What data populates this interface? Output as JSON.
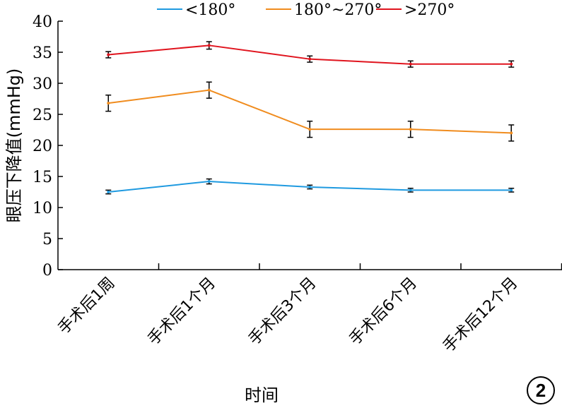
{
  "chart_data": {
    "type": "line",
    "title": "",
    "xlabel": "时间",
    "ylabel": "眼压下降值(mmHg)",
    "categories": [
      "手术后1周",
      "手术后1个月",
      "手术后3个月",
      "手术后6个月",
      "手术后12个月"
    ],
    "ylim": [
      0,
      40
    ],
    "yticks": [
      0,
      5,
      10,
      15,
      20,
      25,
      30,
      35,
      40
    ],
    "grid": false,
    "legend_position": "top",
    "series": [
      {
        "name": "<180°",
        "color": "#1f9ae0",
        "values": [
          12.5,
          14.2,
          13.3,
          12.8,
          12.8
        ],
        "errors": [
          0.3,
          0.4,
          0.3,
          0.3,
          0.3
        ]
      },
      {
        "name": "180°~270°",
        "color": "#f08c1e",
        "values": [
          26.8,
          28.9,
          22.6,
          22.6,
          22.0
        ],
        "errors": [
          1.3,
          1.3,
          1.3,
          1.3,
          1.3
        ]
      },
      {
        "name": ">270°",
        "color": "#e0141e",
        "values": [
          34.6,
          36.1,
          33.9,
          33.1,
          33.1
        ],
        "errors": [
          0.5,
          0.6,
          0.5,
          0.5,
          0.5
        ]
      }
    ]
  },
  "legend": [
    "<180°",
    "180°~270°",
    ">270°"
  ],
  "badge": "2"
}
